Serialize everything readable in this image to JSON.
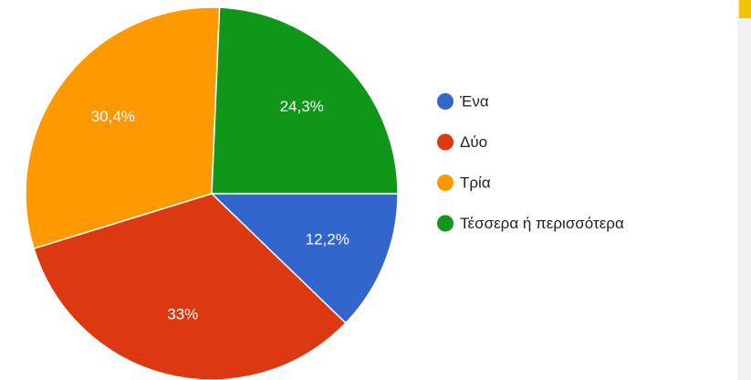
{
  "chart_data": {
    "type": "pie",
    "categories": [
      "Ένα",
      "Δύο",
      "Τρία",
      "Τέσσερα ή περισσότερα"
    ],
    "values": [
      12.2,
      33,
      30.4,
      24.3
    ],
    "value_labels": [
      "12,2%",
      "33%",
      "30,4%",
      "24,3%"
    ],
    "colors": [
      "#3366cc",
      "#dc3912",
      "#ff9900",
      "#109618"
    ],
    "legend": "right"
  }
}
